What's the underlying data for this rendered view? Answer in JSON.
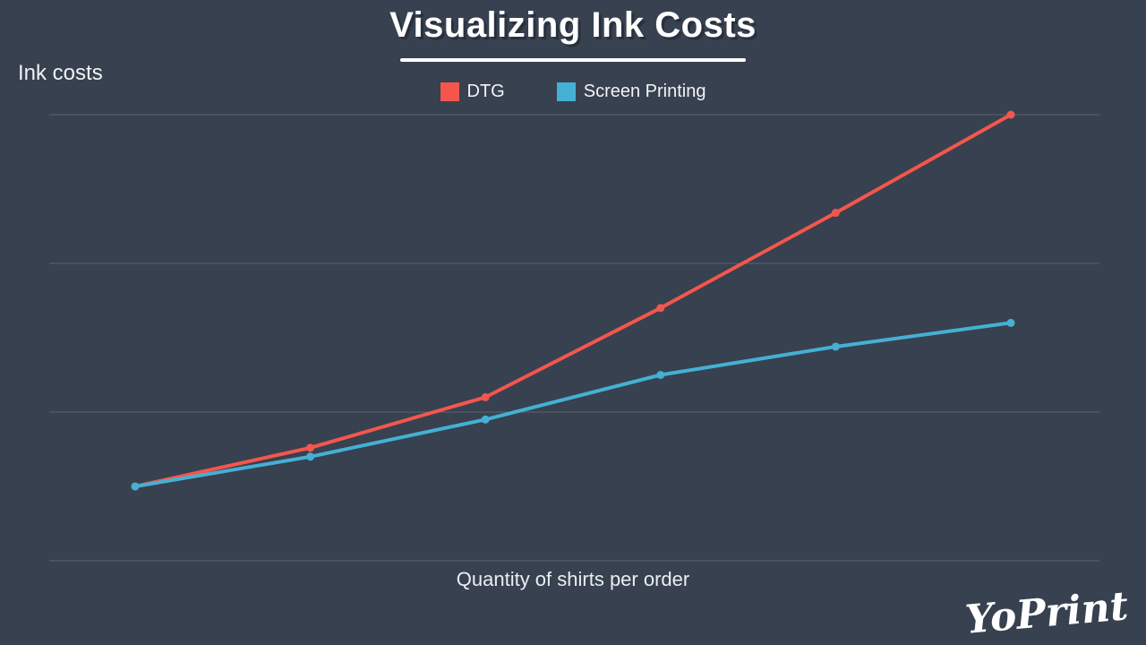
{
  "page": {
    "title": "Visualizing Ink Costs",
    "background_color": "#37414F",
    "brand": "YoPrint"
  },
  "axes": {
    "y_label": "Ink costs",
    "x_label": "Quantity of shirts per order"
  },
  "legend": {
    "items": [
      {
        "label": "DTG",
        "color": "#F4564D"
      },
      {
        "label": "Screen Printing",
        "color": "#45B0D3"
      }
    ]
  },
  "chart_data": {
    "type": "line",
    "title": "Visualizing Ink Costs",
    "xlabel": "Quantity of shirts per order",
    "ylabel": "Ink costs",
    "x": [
      1,
      2,
      3,
      4,
      5,
      6
    ],
    "x_tick_labels_visible": false,
    "y_tick_labels_visible": false,
    "ylim": [
      0,
      3
    ],
    "grid": "horizontal-only",
    "gridline_count": 4,
    "legend_position": "top-center",
    "series": [
      {
        "name": "DTG",
        "color": "#F4564D",
        "values": [
          0.5,
          0.76,
          1.1,
          1.7,
          2.34,
          3.0
        ]
      },
      {
        "name": "Screen Printing",
        "color": "#45B0D3",
        "values": [
          0.5,
          0.7,
          0.95,
          1.25,
          1.44,
          1.6
        ]
      }
    ],
    "units_note": "No numeric axis labels are shown in the image; values are relative, measured in gridline intervals above the bottom gridline."
  }
}
